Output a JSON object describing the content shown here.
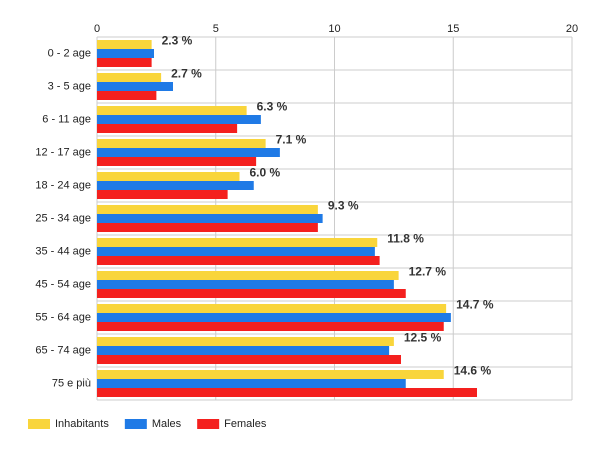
{
  "chart_data": {
    "type": "hbar",
    "categories": [
      "0 - 2 age",
      "3 - 5 age",
      "6 - 11 age",
      "12 - 17 age",
      "18 - 24 age",
      "25 - 34 age",
      "35 - 44 age",
      "45 - 54 age",
      "55 - 64 age",
      "65 - 74 age",
      "75 e più"
    ],
    "series": [
      {
        "name": "Inhabitants",
        "color": "#f9d53b",
        "values": [
          2.3,
          2.7,
          6.3,
          7.1,
          6.0,
          9.3,
          11.8,
          12.7,
          14.7,
          12.5,
          14.6
        ],
        "value_labels": [
          "2.3 %",
          "2.7 %",
          "6.3 %",
          "7.1 %",
          "6.0 %",
          "9.3 %",
          "11.8 %",
          "12.7 %",
          "14.7 %",
          "12.5 %",
          "14.6 %"
        ]
      },
      {
        "name": "Males",
        "color": "#1f7ae6",
        "values": [
          2.4,
          3.2,
          6.9,
          7.7,
          6.6,
          9.5,
          11.7,
          12.5,
          14.9,
          12.3,
          13.0
        ]
      },
      {
        "name": "Females",
        "color": "#f4201e",
        "values": [
          2.3,
          2.5,
          5.9,
          6.7,
          5.5,
          9.3,
          11.9,
          13.0,
          14.6,
          12.8,
          16.0
        ]
      }
    ],
    "xlim": [
      0,
      20
    ],
    "xticks": [
      0,
      5,
      10,
      15,
      20
    ],
    "grid": true,
    "legend": "bottom"
  }
}
